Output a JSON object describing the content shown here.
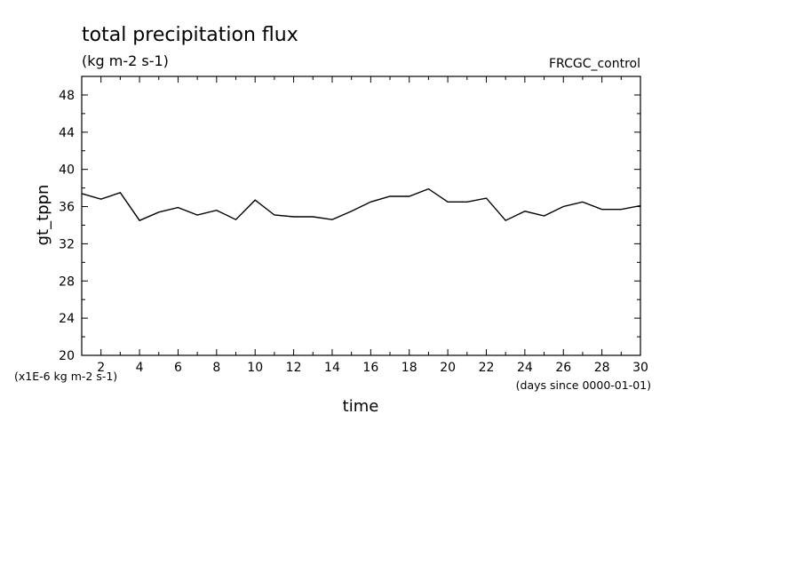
{
  "chart_data": {
    "type": "line",
    "title": "total precipitation flux",
    "subtitle": "(kg m-2 s-1)",
    "experiment": "FRCGC_control",
    "xlabel": "time",
    "ylabel": "gt_tppn",
    "x_units": "(days since 0000-01-01)",
    "y_units": "(x1E-6 kg m-2 s-1)",
    "xlim": [
      1,
      30
    ],
    "ylim": [
      20,
      50
    ],
    "x_ticks": [
      2,
      4,
      6,
      8,
      10,
      12,
      14,
      16,
      18,
      20,
      22,
      24,
      26,
      28,
      30
    ],
    "y_ticks": [
      20,
      24,
      28,
      32,
      36,
      40,
      44,
      48
    ],
    "grid": false,
    "series": [
      {
        "x": [
          1,
          2,
          3,
          4,
          5,
          6,
          7,
          8,
          9,
          10,
          11,
          12,
          13,
          14,
          15,
          16,
          17,
          18,
          19,
          20,
          21,
          22,
          23,
          24,
          25,
          26,
          27,
          28,
          29,
          30
        ],
        "values": [
          37.4,
          36.8,
          37.5,
          34.5,
          35.4,
          35.9,
          35.1,
          35.6,
          34.6,
          36.7,
          35.1,
          34.9,
          34.9,
          34.6,
          35.5,
          36.5,
          37.1,
          37.1,
          37.9,
          36.5,
          36.5,
          36.9,
          34.5,
          35.5,
          35.0,
          36.0,
          36.5,
          35.7,
          35.7,
          36.1
        ]
      }
    ]
  }
}
